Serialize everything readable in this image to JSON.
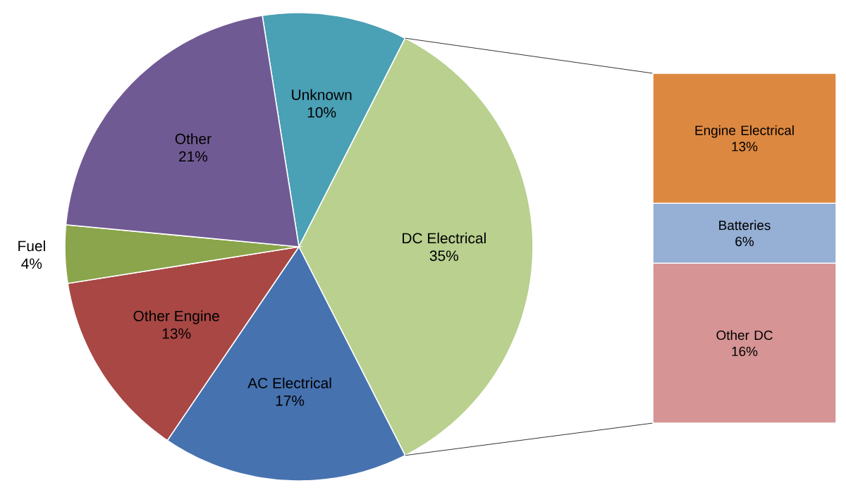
{
  "chart_data": [
    {
      "type": "pie",
      "categories": [
        "Unknown",
        "DC Electrical",
        "AC Electrical",
        "Other Engine",
        "Fuel",
        "Other"
      ],
      "values": [
        10,
        35,
        17,
        13,
        4,
        21
      ],
      "value_labels": [
        "10%",
        "35%",
        "17%",
        "13%",
        "4%",
        "21%"
      ],
      "colors": [
        "#4aa0b5",
        "#b9d08f",
        "#4672b0",
        "#a84744",
        "#8aa54b",
        "#705a93"
      ]
    },
    {
      "type": "bar",
      "stacked": true,
      "categories": [
        null
      ],
      "series": [
        {
          "name": "Other DC",
          "color": "#d69494",
          "values": [
            16
          ],
          "value_labels": [
            "16%"
          ]
        },
        {
          "name": "Batteries",
          "color": "#95afd5",
          "values": [
            6
          ],
          "value_labels": [
            "6%"
          ]
        },
        {
          "name": "Engine Electrical",
          "color": "#dd8840",
          "values": [
            13
          ],
          "value_labels": [
            "13%"
          ]
        }
      ]
    }
  ]
}
